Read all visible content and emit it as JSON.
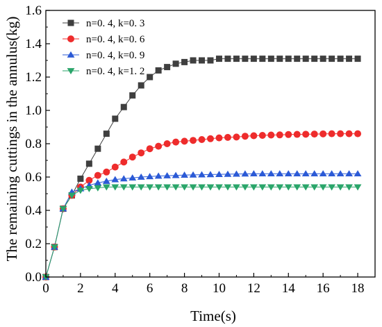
{
  "chart_data": {
    "type": "line",
    "title": "",
    "xlabel": "Time(s)",
    "ylabel": "The remaining cuttings in the annulus(kg)",
    "xlim": [
      0,
      19
    ],
    "ylim": [
      0,
      1.6
    ],
    "xticks": [
      "0",
      "2",
      "4",
      "6",
      "8",
      "10",
      "12",
      "14",
      "16",
      "18"
    ],
    "yticks": [
      "0.0",
      "0.2",
      "0.4",
      "0.6",
      "0.8",
      "1.0",
      "1.2",
      "1.4",
      "1.6"
    ],
    "xtick_values": [
      0,
      2,
      4,
      6,
      8,
      10,
      12,
      14,
      16,
      18
    ],
    "ytick_values": [
      0,
      0.2,
      0.4,
      0.6,
      0.8,
      1.0,
      1.2,
      1.4,
      1.6
    ],
    "grid": false,
    "legend_position": "top-left",
    "x": [
      0,
      0.5,
      1,
      1.5,
      2,
      2.5,
      3,
      3.5,
      4,
      4.5,
      5,
      5.5,
      6,
      6.5,
      7,
      7.5,
      8,
      8.5,
      9,
      9.5,
      10,
      10.5,
      11,
      11.5,
      12,
      12.5,
      13,
      13.5,
      14,
      14.5,
      15,
      15.5,
      16,
      16.5,
      17,
      17.5,
      18
    ],
    "series": [
      {
        "name": "n=0. 4, k=0. 3",
        "color": "#3f3f3f",
        "marker": "square",
        "values": [
          0.0,
          0.18,
          0.41,
          0.49,
          0.59,
          0.68,
          0.77,
          0.86,
          0.95,
          1.02,
          1.09,
          1.15,
          1.2,
          1.24,
          1.26,
          1.28,
          1.29,
          1.3,
          1.3,
          1.3,
          1.31,
          1.31,
          1.31,
          1.31,
          1.31,
          1.31,
          1.31,
          1.31,
          1.31,
          1.31,
          1.31,
          1.31,
          1.31,
          1.31,
          1.31,
          1.31,
          1.31
        ]
      },
      {
        "name": "n=0. 4, k=0. 6",
        "color": "#ee2c2c",
        "marker": "circle",
        "values": [
          0.0,
          0.18,
          0.41,
          0.49,
          0.54,
          0.58,
          0.61,
          0.63,
          0.66,
          0.69,
          0.72,
          0.745,
          0.77,
          0.785,
          0.8,
          0.81,
          0.815,
          0.82,
          0.825,
          0.83,
          0.835,
          0.838,
          0.84,
          0.845,
          0.848,
          0.85,
          0.852,
          0.853,
          0.855,
          0.856,
          0.857,
          0.858,
          0.859,
          0.86,
          0.86,
          0.86,
          0.86
        ]
      },
      {
        "name": "n=0. 4, k=0. 9",
        "color": "#2b5ad6",
        "marker": "triangle-up",
        "values": [
          0.0,
          0.18,
          0.41,
          0.51,
          0.53,
          0.55,
          0.565,
          0.575,
          0.585,
          0.59,
          0.595,
          0.6,
          0.603,
          0.606,
          0.608,
          0.61,
          0.612,
          0.613,
          0.614,
          0.615,
          0.616,
          0.617,
          0.618,
          0.619,
          0.62,
          0.62,
          0.62,
          0.62,
          0.62,
          0.62,
          0.62,
          0.62,
          0.62,
          0.62,
          0.62,
          0.62,
          0.62
        ]
      },
      {
        "name": "n=0. 4, k=1. 2",
        "color": "#2aa56a",
        "marker": "triangle-down",
        "values": [
          0.0,
          0.18,
          0.41,
          0.49,
          0.52,
          0.53,
          0.535,
          0.54,
          0.54,
          0.54,
          0.54,
          0.54,
          0.54,
          0.54,
          0.54,
          0.54,
          0.54,
          0.54,
          0.54,
          0.54,
          0.54,
          0.54,
          0.54,
          0.54,
          0.54,
          0.54,
          0.54,
          0.54,
          0.54,
          0.54,
          0.54,
          0.54,
          0.54,
          0.54,
          0.54,
          0.54,
          0.54
        ]
      }
    ]
  }
}
